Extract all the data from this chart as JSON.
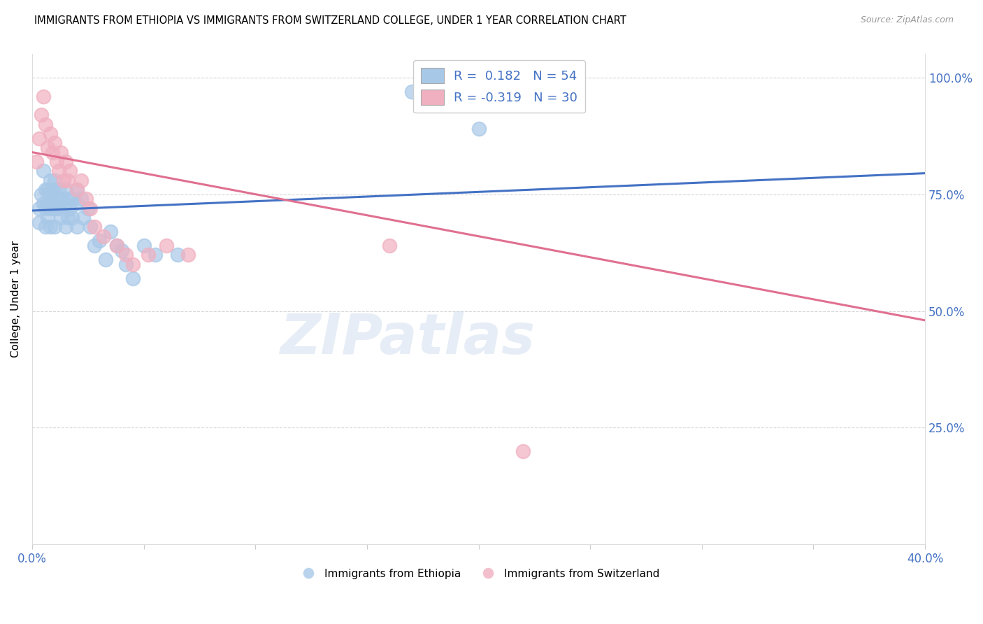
{
  "title": "IMMIGRANTS FROM ETHIOPIA VS IMMIGRANTS FROM SWITZERLAND COLLEGE, UNDER 1 YEAR CORRELATION CHART",
  "source": "Source: ZipAtlas.com",
  "ylabel": "College, Under 1 year",
  "yticks": [
    0.0,
    0.25,
    0.5,
    0.75,
    1.0
  ],
  "ytick_labels": [
    "",
    "25.0%",
    "50.0%",
    "75.0%",
    "100.0%"
  ],
  "xticks": [
    0.0,
    0.05,
    0.1,
    0.15,
    0.2,
    0.25,
    0.3,
    0.35,
    0.4
  ],
  "xlim": [
    0.0,
    0.4
  ],
  "ylim": [
    0.0,
    1.05
  ],
  "watermark": "ZIPatlas",
  "blue_color": "#a8c8e8",
  "pink_color": "#f0b0c0",
  "line_blue": "#4472c4",
  "line_pink": "#e07090",
  "ethiopia_x": [
    0.003,
    0.003,
    0.004,
    0.005,
    0.005,
    0.006,
    0.006,
    0.006,
    0.007,
    0.007,
    0.007,
    0.008,
    0.008,
    0.008,
    0.008,
    0.009,
    0.009,
    0.01,
    0.01,
    0.01,
    0.01,
    0.012,
    0.012,
    0.013,
    0.013,
    0.015,
    0.015,
    0.015,
    0.016,
    0.016,
    0.017,
    0.018,
    0.018,
    0.02,
    0.02,
    0.02,
    0.022,
    0.023,
    0.025,
    0.026,
    0.028,
    0.03,
    0.033,
    0.035,
    0.038,
    0.04,
    0.042,
    0.045,
    0.05,
    0.055,
    0.065,
    0.17,
    0.2,
    0.215
  ],
  "ethiopia_y": [
    0.72,
    0.69,
    0.75,
    0.8,
    0.73,
    0.76,
    0.72,
    0.68,
    0.76,
    0.73,
    0.7,
    0.78,
    0.75,
    0.72,
    0.68,
    0.76,
    0.73,
    0.78,
    0.75,
    0.72,
    0.68,
    0.76,
    0.72,
    0.74,
    0.7,
    0.76,
    0.73,
    0.68,
    0.74,
    0.7,
    0.72,
    0.74,
    0.7,
    0.76,
    0.73,
    0.68,
    0.74,
    0.7,
    0.72,
    0.68,
    0.64,
    0.65,
    0.61,
    0.67,
    0.64,
    0.63,
    0.6,
    0.57,
    0.64,
    0.62,
    0.62,
    0.97,
    0.89,
    0.96
  ],
  "switzerland_x": [
    0.002,
    0.003,
    0.004,
    0.005,
    0.006,
    0.007,
    0.008,
    0.009,
    0.01,
    0.011,
    0.012,
    0.013,
    0.014,
    0.015,
    0.016,
    0.017,
    0.02,
    0.022,
    0.024,
    0.026,
    0.028,
    0.032,
    0.038,
    0.042,
    0.045,
    0.052,
    0.06,
    0.07,
    0.16,
    0.22
  ],
  "switzerland_y": [
    0.82,
    0.87,
    0.92,
    0.96,
    0.9,
    0.85,
    0.88,
    0.84,
    0.86,
    0.82,
    0.8,
    0.84,
    0.78,
    0.82,
    0.78,
    0.8,
    0.76,
    0.78,
    0.74,
    0.72,
    0.68,
    0.66,
    0.64,
    0.62,
    0.6,
    0.62,
    0.64,
    0.62,
    0.64,
    0.2
  ],
  "eth_line_x": [
    0.0,
    0.4
  ],
  "eth_line_y": [
    0.715,
    0.795
  ],
  "swi_line_x": [
    0.0,
    0.4
  ],
  "swi_line_y": [
    0.84,
    0.48
  ]
}
